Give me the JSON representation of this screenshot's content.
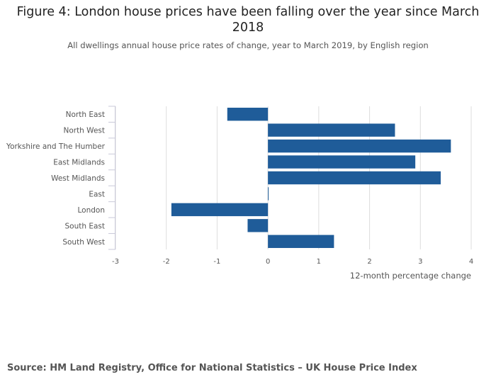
{
  "chart_data": {
    "type": "bar",
    "orientation": "horizontal",
    "title": "Figure 4: London house prices have been falling over the year since March 2018",
    "subtitle": "All dwellings annual house price rates of change, year to March 2019, by English region",
    "categories": [
      "North East",
      "North West",
      "Yorkshire and The Humber",
      "East Midlands",
      "West Midlands",
      "East",
      "London",
      "South East",
      "South West"
    ],
    "values": [
      -0.8,
      2.5,
      3.6,
      2.9,
      3.4,
      0.0,
      -1.9,
      -0.4,
      1.3
    ],
    "xlabel": "12-month percentage change",
    "ylabel": "",
    "xlim": [
      -3,
      4
    ],
    "xticks": [
      -3,
      -2,
      -1,
      0,
      1,
      2,
      3,
      4
    ],
    "grid": true,
    "bar_color": "#1f5c99"
  },
  "source": "Source: HM Land Registry, Office for National Statistics – UK House Price Index"
}
